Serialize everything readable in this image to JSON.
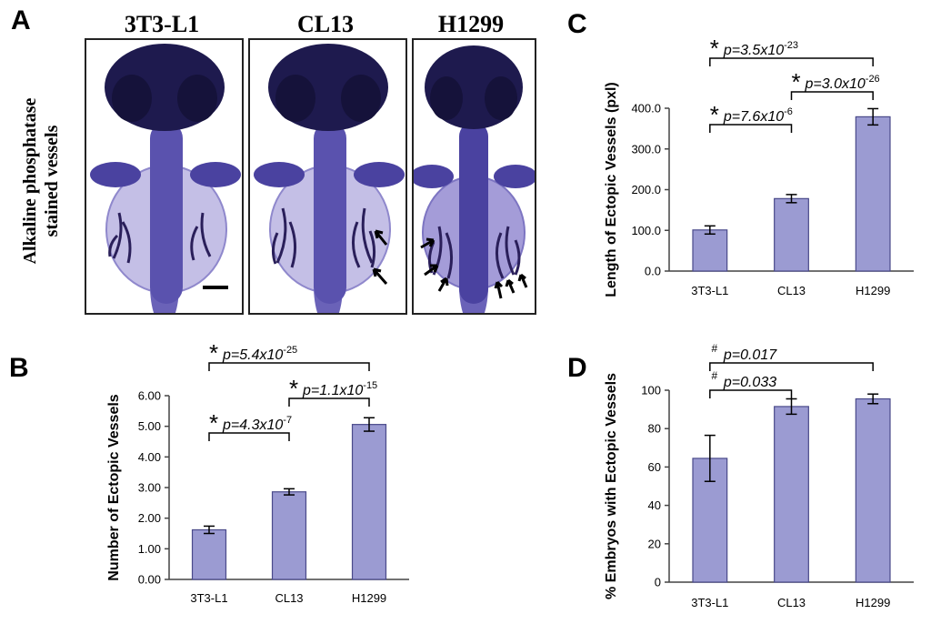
{
  "panel_a": {
    "letter": "A",
    "labels": [
      "3T3-L1",
      "CL13",
      "H1299"
    ],
    "side_label_lines": [
      "Alkaline phosphatase",
      "stained vessels"
    ]
  },
  "colors": {
    "bar_fill": "#9b9bd2",
    "bar_stroke": "#4a4a8a",
    "embryo_dark": "#1e1a4e",
    "embryo_mid": "#4a42a0",
    "embryo_light": "#b9b3df",
    "vessel": "#2a1f5a"
  },
  "chart_data": [
    {
      "letter": "B",
      "type": "bar",
      "categories": [
        "3T3-L1",
        "CL13",
        "H1299"
      ],
      "values": [
        1.62,
        2.86,
        5.06
      ],
      "errors": [
        0.12,
        0.1,
        0.22
      ],
      "ylabel": "Number of  Ectopic Vessels",
      "ylim": [
        0,
        6
      ],
      "yticks": [
        "0.00",
        "1.00",
        "2.00",
        "3.00",
        "4.00",
        "5.00",
        "6.00"
      ],
      "comparisons": [
        {
          "from": 0,
          "to": 1,
          "marker": "*",
          "text": "p=4.3x10",
          "exp": "-7"
        },
        {
          "from": 1,
          "to": 2,
          "marker": "*",
          "text": "p=1.1x10",
          "exp": "-15"
        },
        {
          "from": 0,
          "to": 2,
          "marker": "*",
          "text": "p=5.4x10",
          "exp": "-25"
        }
      ]
    },
    {
      "letter": "C",
      "type": "bar",
      "categories": [
        "3T3-L1",
        "CL13",
        "H1299"
      ],
      "values": [
        101,
        178,
        379
      ],
      "errors": [
        10,
        10,
        20
      ],
      "ylabel": "Length of Ectopic Vessels (pxl)",
      "ylim": [
        0,
        400
      ],
      "yticks": [
        "0.0",
        "100.0",
        "200.0",
        "300.0",
        "400.0"
      ],
      "comparisons": [
        {
          "from": 0,
          "to": 1,
          "marker": "*",
          "text": "p=7.6x10",
          "exp": "-6"
        },
        {
          "from": 1,
          "to": 2,
          "marker": "*",
          "text": "p=3.0x10",
          "exp": "-26"
        },
        {
          "from": 0,
          "to": 2,
          "marker": "*",
          "text": "p=3.5x10",
          "exp": "-23"
        }
      ]
    },
    {
      "letter": "D",
      "type": "bar",
      "categories": [
        "3T3-L1",
        "CL13",
        "H1299"
      ],
      "values": [
        64.5,
        91.5,
        95.5
      ],
      "errors": [
        12,
        4,
        2.5
      ],
      "ylabel": "% Embryos with Ectopic Vessels",
      "ylim": [
        0,
        100
      ],
      "yticks": [
        "0",
        "20",
        "40",
        "60",
        "80",
        "100"
      ],
      "comparisons": [
        {
          "from": 0,
          "to": 1,
          "marker": "#",
          "text": "p=0.033",
          "exp": ""
        },
        {
          "from": 0,
          "to": 2,
          "marker": "#",
          "text": "p=0.017",
          "exp": ""
        }
      ]
    }
  ]
}
